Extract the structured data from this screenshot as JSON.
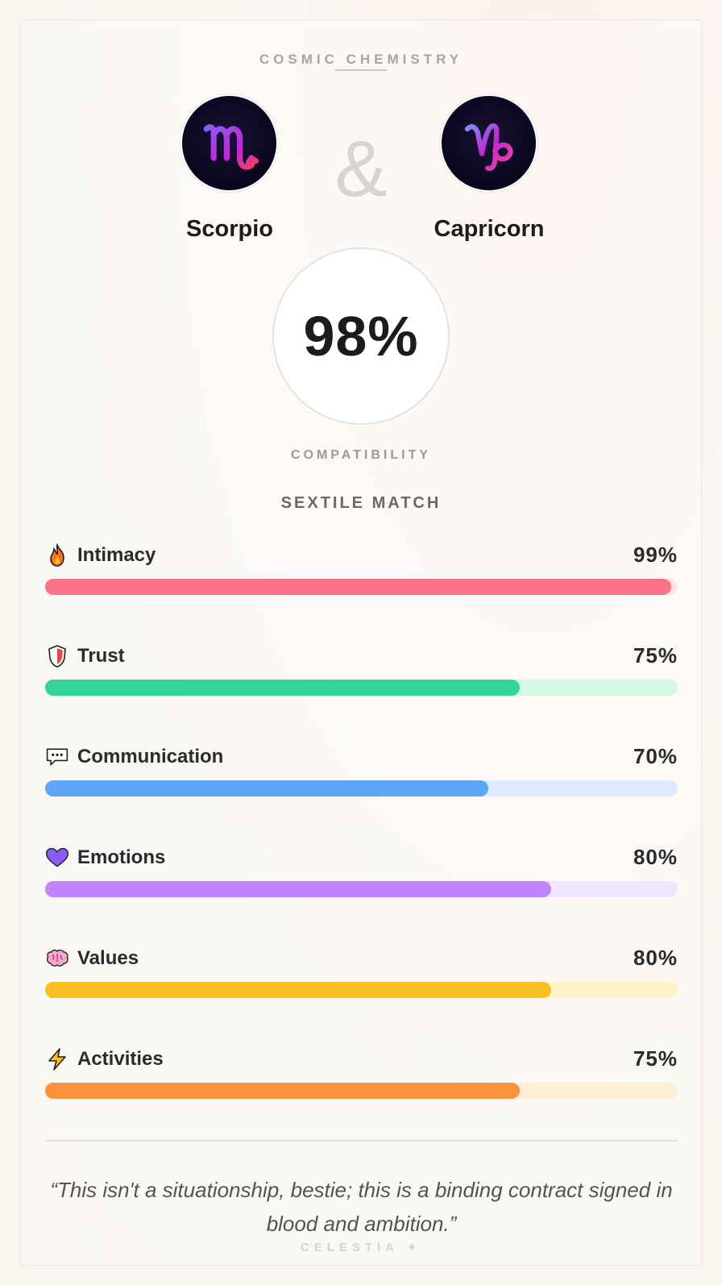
{
  "header": {
    "eyebrow": "COSMIC CHEMISTRY"
  },
  "signs": [
    {
      "name": "Scorpio",
      "icon": "scorpio-glyph-icon"
    },
    {
      "name": "Capricorn",
      "icon": "capricorn-glyph-icon"
    }
  ],
  "ampersand": "&",
  "score": {
    "value": "98%",
    "label": "COMPATIBILITY",
    "match_type": "SEXTILE MATCH"
  },
  "metrics": [
    {
      "name": "Intimacy",
      "pct_label": "99%",
      "value": 0.99,
      "icon": "fire-icon",
      "color": "#fb7185",
      "track": "#fde6ea"
    },
    {
      "name": "Trust",
      "pct_label": "75%",
      "value": 0.75,
      "icon": "shield-icon",
      "color": "#34d399",
      "track": "#d1fae5"
    },
    {
      "name": "Communication",
      "pct_label": "70%",
      "value": 0.7,
      "icon": "speech-bubble-icon",
      "color": "#60a5fa",
      "track": "#dbeafe"
    },
    {
      "name": "Emotions",
      "pct_label": "80%",
      "value": 0.8,
      "icon": "purple-heart-icon",
      "color": "#c084fc",
      "track": "#f1e6fe"
    },
    {
      "name": "Values",
      "pct_label": "80%",
      "value": 0.8,
      "icon": "brain-icon",
      "color": "#fbbf24",
      "track": "#fef3c7"
    },
    {
      "name": "Activities",
      "pct_label": "75%",
      "value": 0.75,
      "icon": "lightning-icon",
      "color": "#fb923c",
      "track": "#ffedd5"
    }
  ],
  "quote": "“This isn't a situationship, bestie; this is a binding contract signed in blood and ambition.”",
  "brand": "CELESTIA ✦"
}
